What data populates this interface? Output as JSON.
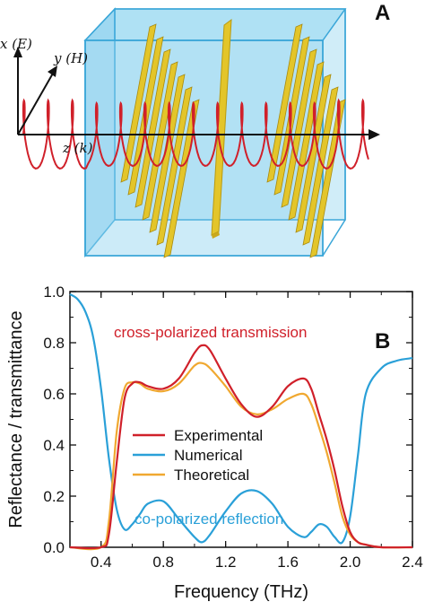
{
  "panel_a": {
    "letter": "A",
    "labels": {
      "x_axis": "x (E)",
      "y_axis": "y (H)",
      "z_axis": "z (k)"
    },
    "colors": {
      "box": "#8fd3f0",
      "box_edge": "#3aa6d8",
      "wire": "#e3c52a",
      "wave": "#d0202a"
    }
  },
  "chart_data": {
    "type": "line",
    "panel_letter": "B",
    "title": "",
    "xlabel": "Frequency (THz)",
    "ylabel": "Reflectance / transmittance",
    "xlim": [
      0.2,
      2.4
    ],
    "ylim": [
      0,
      1.0
    ],
    "xticks": [
      "0.4",
      "0.8",
      "1.2",
      "1.6",
      "2.0",
      "2.4"
    ],
    "yticks": [
      "0.0",
      "0.2",
      "0.4",
      "0.6",
      "0.8",
      "1.0"
    ],
    "grid": false,
    "legend_position": "center",
    "annotations": [
      {
        "text": "cross-polarized transmission",
        "color": "#d0202a"
      },
      {
        "text": "co-polarized reflection",
        "color": "#2aa0d8"
      }
    ],
    "series": [
      {
        "name": "Experimental",
        "color": "#d0202a",
        "x": [
          0.2,
          0.4,
          0.45,
          0.5,
          0.55,
          0.6,
          0.65,
          0.7,
          0.8,
          0.9,
          1.0,
          1.05,
          1.1,
          1.2,
          1.3,
          1.4,
          1.5,
          1.6,
          1.7,
          1.75,
          1.8,
          1.85,
          1.9,
          1.95,
          2.0,
          2.05,
          2.1,
          2.2,
          2.4
        ],
        "y": [
          0.0,
          0.0,
          0.05,
          0.33,
          0.58,
          0.64,
          0.645,
          0.63,
          0.62,
          0.66,
          0.76,
          0.79,
          0.77,
          0.66,
          0.56,
          0.51,
          0.55,
          0.63,
          0.66,
          0.62,
          0.52,
          0.42,
          0.3,
          0.16,
          0.06,
          0.02,
          0.01,
          0.0,
          0.0
        ]
      },
      {
        "name": "Numerical",
        "color": "#2aa0d8",
        "x": [
          0.2,
          0.25,
          0.3,
          0.35,
          0.4,
          0.45,
          0.5,
          0.55,
          0.6,
          0.65,
          0.7,
          0.8,
          0.9,
          1.0,
          1.05,
          1.1,
          1.2,
          1.3,
          1.4,
          1.5,
          1.6,
          1.7,
          1.75,
          1.8,
          1.85,
          1.9,
          1.95,
          2.0,
          2.05,
          2.1,
          2.2,
          2.3,
          2.4
        ],
        "y": [
          0.99,
          0.97,
          0.92,
          0.82,
          0.62,
          0.35,
          0.15,
          0.07,
          0.09,
          0.13,
          0.17,
          0.18,
          0.11,
          0.04,
          0.02,
          0.05,
          0.14,
          0.21,
          0.22,
          0.17,
          0.08,
          0.04,
          0.06,
          0.09,
          0.08,
          0.04,
          0.02,
          0.12,
          0.36,
          0.6,
          0.7,
          0.73,
          0.74
        ]
      },
      {
        "name": "Theoretical",
        "color": "#f0a830",
        "x": [
          0.2,
          0.4,
          0.45,
          0.5,
          0.55,
          0.6,
          0.65,
          0.7,
          0.8,
          0.9,
          1.0,
          1.05,
          1.1,
          1.2,
          1.3,
          1.4,
          1.5,
          1.6,
          1.7,
          1.75,
          1.8,
          1.85,
          1.9,
          1.95,
          2.0,
          2.05,
          2.1,
          2.2,
          2.4
        ],
        "y": [
          0.0,
          0.0,
          0.1,
          0.45,
          0.62,
          0.645,
          0.64,
          0.62,
          0.61,
          0.64,
          0.71,
          0.72,
          0.7,
          0.63,
          0.55,
          0.52,
          0.54,
          0.58,
          0.6,
          0.56,
          0.47,
          0.37,
          0.25,
          0.12,
          0.05,
          0.02,
          0.01,
          0.0,
          0.0
        ]
      }
    ]
  }
}
